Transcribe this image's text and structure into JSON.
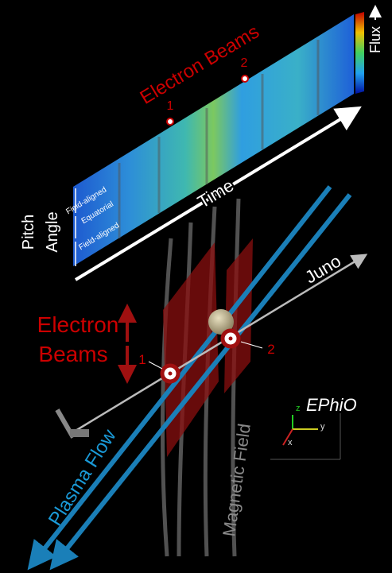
{
  "panel": {
    "beams_title": "Electron Beams",
    "beam_1": "1",
    "beam_2": "2",
    "time": "Time",
    "flux": "Flux",
    "pitch": "Pitch",
    "angle": "Angle",
    "bands": [
      "Field-aligned",
      "Equatorial",
      "Field-aligned"
    ]
  },
  "scene": {
    "juno": "Juno",
    "beams_line1": "Electron",
    "beams_line2": "Beams",
    "beam_1": "1",
    "beam_2": "2",
    "plasma_flow": "Plasma Flow",
    "magnetic_field": "Magnetic Field",
    "frame": "EPhiO",
    "axis_z": "z",
    "axis_y": "y",
    "axis_x": "x"
  }
}
